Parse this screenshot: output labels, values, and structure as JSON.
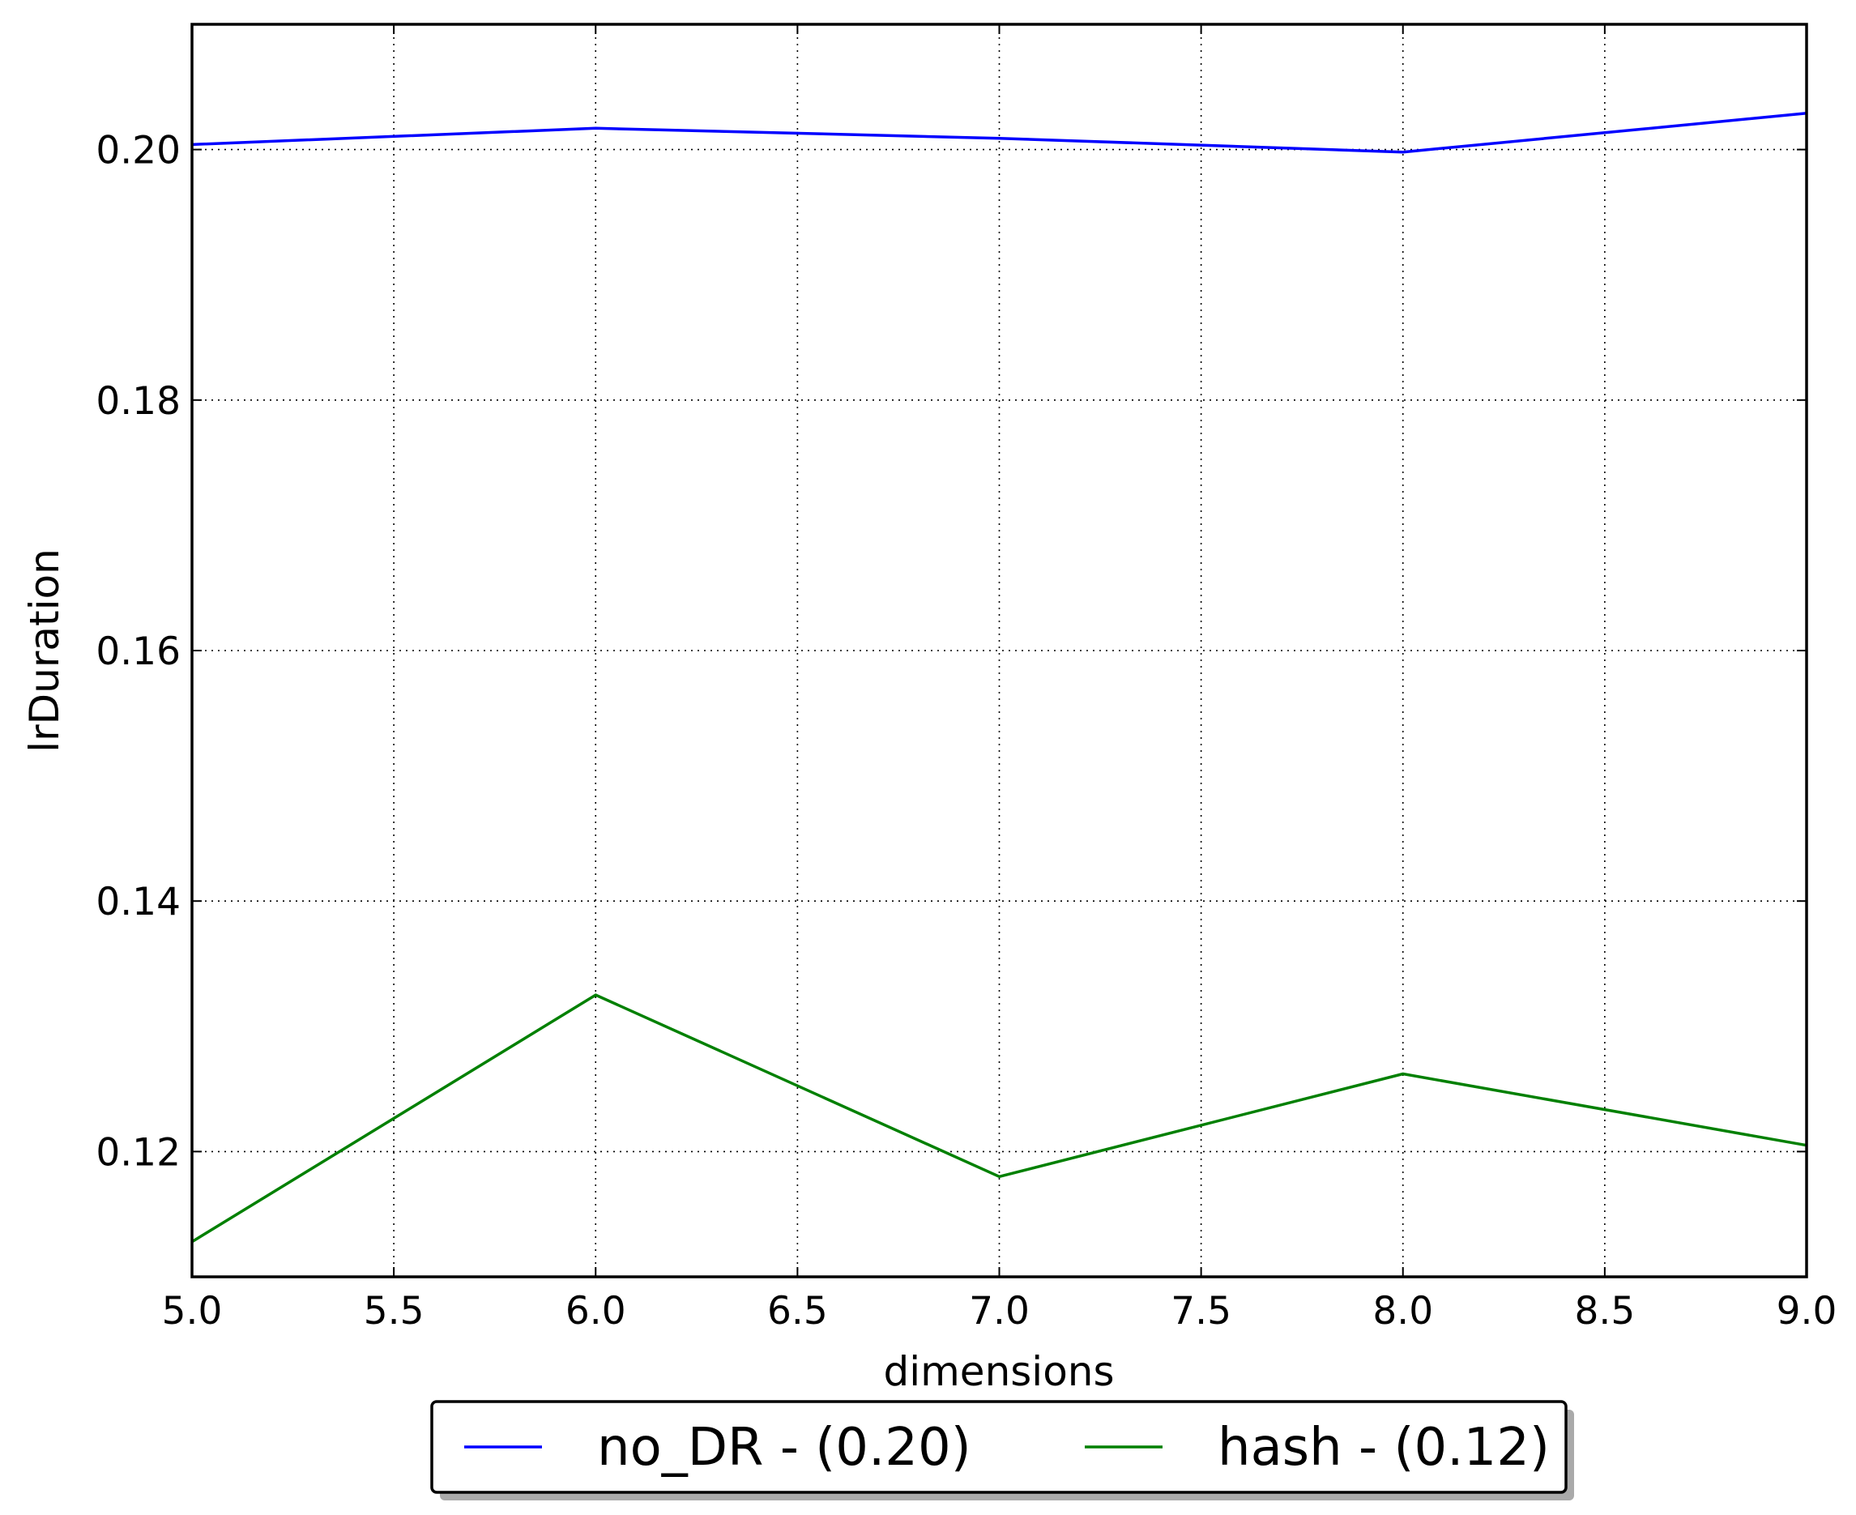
{
  "chart_data": {
    "type": "line",
    "title": "",
    "xlabel": "dimensions",
    "ylabel": "lrDuration",
    "xlim": [
      5.0,
      9.0
    ],
    "ylim": [
      0.11,
      0.21
    ],
    "xticks": [
      "5.0",
      "5.5",
      "6.0",
      "6.5",
      "7.0",
      "7.5",
      "8.0",
      "8.5",
      "9.0"
    ],
    "yticks": [
      "0.12",
      "0.14",
      "0.16",
      "0.18",
      "0.20"
    ],
    "grid": true,
    "legend_position": "below",
    "x": [
      5,
      6,
      7,
      8,
      9
    ],
    "series": [
      {
        "name": "no_DR - (0.20)",
        "color": "#0000ff",
        "values": [
          0.2004,
          0.2017,
          0.2009,
          0.1998,
          0.2029
        ]
      },
      {
        "name": "hash - (0.12)",
        "color": "#008000",
        "values": [
          0.1128,
          0.1325,
          0.118,
          0.1262,
          0.1205
        ]
      }
    ]
  }
}
